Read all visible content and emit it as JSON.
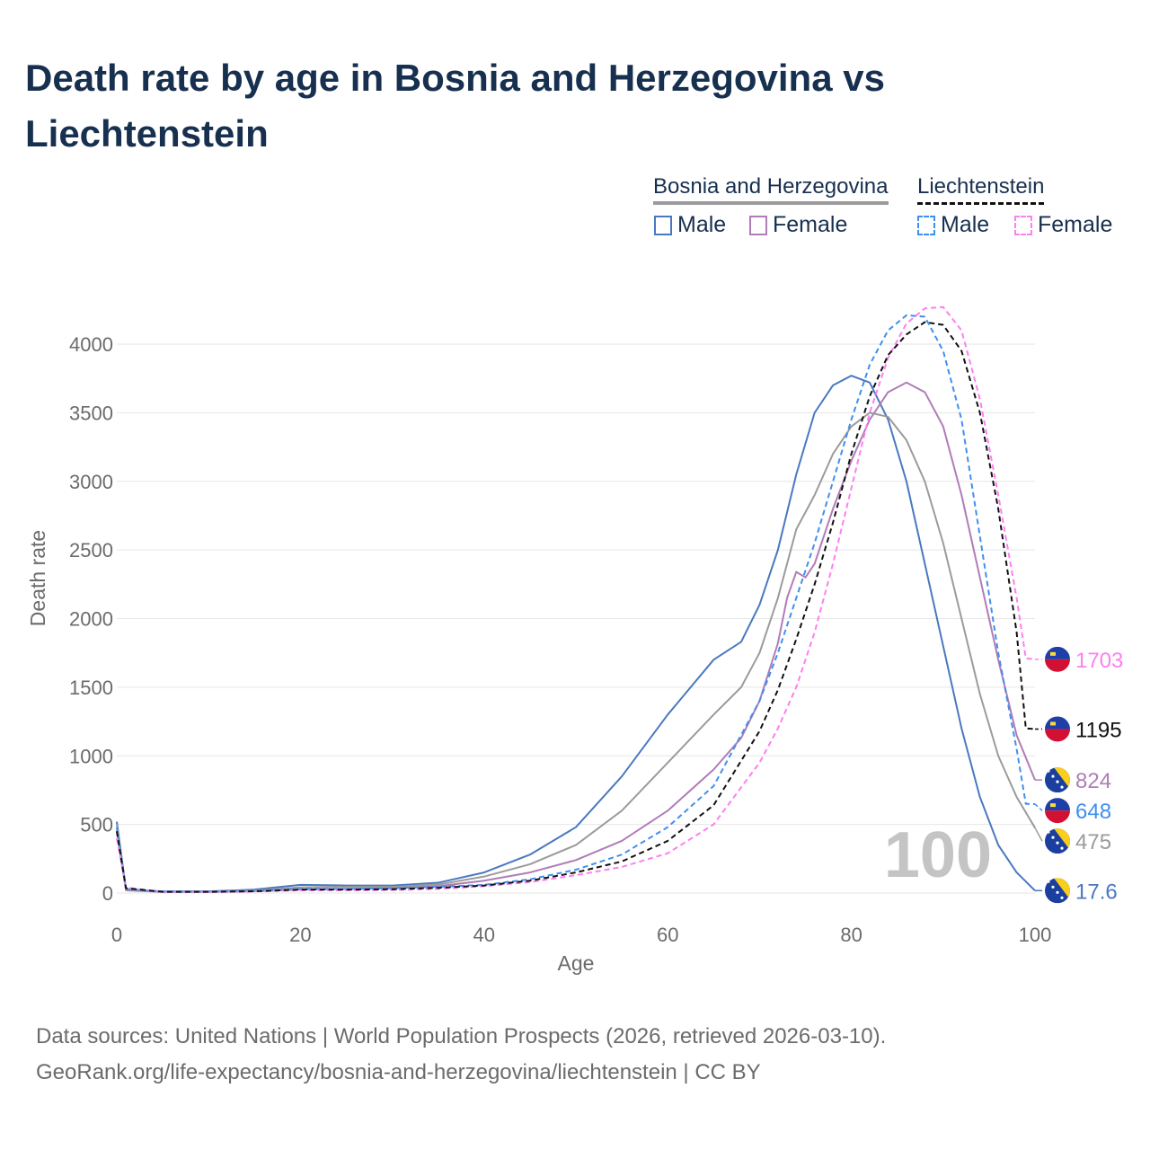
{
  "title": "Death rate by age in Bosnia and Herzegovina vs Liechtenstein",
  "legend": {
    "groups": [
      {
        "name": "Bosnia and Herzegovina",
        "underline_color": "#9b9b9b",
        "items": [
          {
            "label": "Male",
            "color": "#4a78c0",
            "dashed": false
          },
          {
            "label": "Female",
            "color": "#b07cb8",
            "dashed": false
          }
        ]
      },
      {
        "name": "Liechtenstein",
        "underline_color": "#111111",
        "items": [
          {
            "label": "Male",
            "color": "#3f8ff0",
            "dashed": true
          },
          {
            "label": "Female",
            "color": "#ff7ef0",
            "dashed": true
          }
        ]
      }
    ]
  },
  "chart_data": {
    "type": "line",
    "xlabel": "Age",
    "ylabel": "Death rate",
    "xlim": [
      0,
      100
    ],
    "ylim": [
      0,
      4000
    ],
    "xticks": [
      0,
      20,
      40,
      60,
      80,
      100
    ],
    "yticks": [
      0,
      500,
      1000,
      1500,
      2000,
      2500,
      3000,
      3500,
      4000
    ],
    "grid": true,
    "highlight_age": "100",
    "series": [
      {
        "name": "Bosnia and Herzegovina Male",
        "color": "#4a78c0",
        "dashed": false,
        "end_label": "17.6",
        "flag": "bosnia",
        "x": [
          0,
          1,
          5,
          10,
          15,
          20,
          25,
          30,
          35,
          40,
          45,
          50,
          55,
          60,
          65,
          68,
          70,
          72,
          74,
          76,
          78,
          80,
          82,
          84,
          86,
          88,
          90,
          92,
          94,
          96,
          98,
          100
        ],
        "y": [
          520,
          25,
          12,
          12,
          25,
          60,
          55,
          55,
          75,
          150,
          280,
          480,
          850,
          1300,
          1700,
          1830,
          2100,
          2500,
          3050,
          3500,
          3700,
          3770,
          3720,
          3450,
          3000,
          2400,
          1800,
          1200,
          700,
          350,
          150,
          17.6
        ]
      },
      {
        "name": "Bosnia and Herzegovina Female",
        "color": "#b07cb8",
        "dashed": false,
        "end_label": "824",
        "flag": "bosnia",
        "x": [
          0,
          1,
          5,
          10,
          15,
          20,
          25,
          30,
          35,
          40,
          45,
          50,
          55,
          60,
          65,
          68,
          70,
          72,
          73,
          74,
          75,
          76,
          78,
          80,
          82,
          84,
          86,
          88,
          90,
          92,
          94,
          96,
          98,
          100
        ],
        "y": [
          450,
          20,
          8,
          8,
          12,
          25,
          30,
          35,
          50,
          90,
          150,
          240,
          380,
          600,
          900,
          1130,
          1400,
          1820,
          2150,
          2340,
          2300,
          2400,
          2800,
          3150,
          3450,
          3650,
          3720,
          3650,
          3400,
          2900,
          2300,
          1700,
          1150,
          824
        ]
      },
      {
        "name": "Bosnia and Herzegovina Total",
        "color": "#9b9b9b",
        "dashed": false,
        "end_label": "475",
        "flag": "bosnia",
        "x": [
          0,
          1,
          5,
          10,
          15,
          20,
          25,
          30,
          35,
          40,
          45,
          50,
          55,
          60,
          65,
          68,
          70,
          72,
          74,
          76,
          78,
          80,
          82,
          84,
          86,
          88,
          90,
          92,
          94,
          96,
          98,
          100
        ],
        "y": [
          500,
          22,
          10,
          10,
          18,
          42,
          45,
          45,
          62,
          120,
          210,
          350,
          600,
          950,
          1300,
          1500,
          1750,
          2150,
          2650,
          2900,
          3200,
          3400,
          3500,
          3470,
          3300,
          3000,
          2550,
          2000,
          1450,
          1000,
          700,
          475
        ]
      },
      {
        "name": "Liechtenstein Male",
        "color": "#3f8ff0",
        "dashed": true,
        "end_label": "648",
        "flag": "liechtenstein",
        "x": [
          0,
          1,
          5,
          10,
          15,
          20,
          25,
          30,
          35,
          40,
          45,
          50,
          55,
          60,
          65,
          70,
          72,
          74,
          76,
          78,
          80,
          82,
          84,
          86,
          88,
          90,
          92,
          94,
          96,
          98,
          99,
          100
        ],
        "y": [
          480,
          30,
          10,
          10,
          15,
          30,
          30,
          35,
          45,
          60,
          100,
          170,
          280,
          480,
          780,
          1400,
          1750,
          2150,
          2550,
          3000,
          3450,
          3850,
          4100,
          4210,
          4200,
          3950,
          3450,
          2600,
          1750,
          1050,
          650,
          648
        ]
      },
      {
        "name": "Liechtenstein Female",
        "color": "#ff7ef0",
        "dashed": true,
        "end_label": "1703",
        "flag": "liechtenstein",
        "x": [
          0,
          1,
          5,
          10,
          15,
          20,
          25,
          30,
          35,
          40,
          45,
          50,
          55,
          60,
          65,
          70,
          72,
          74,
          76,
          78,
          80,
          82,
          84,
          86,
          88,
          90,
          92,
          94,
          96,
          98,
          99,
          100
        ],
        "y": [
          400,
          40,
          8,
          8,
          12,
          20,
          20,
          22,
          30,
          50,
          80,
          130,
          190,
          290,
          500,
          950,
          1200,
          1500,
          1900,
          2400,
          2950,
          3500,
          3900,
          4150,
          4260,
          4270,
          4100,
          3600,
          2900,
          2150,
          1710,
          1703
        ]
      },
      {
        "name": "Liechtenstein Total",
        "color": "#111111",
        "dashed": true,
        "end_label": "1195",
        "flag": "liechtenstein",
        "x": [
          0,
          1,
          5,
          10,
          15,
          20,
          25,
          30,
          35,
          40,
          45,
          50,
          55,
          60,
          65,
          70,
          72,
          74,
          76,
          78,
          80,
          82,
          84,
          86,
          88,
          90,
          92,
          94,
          96,
          98,
          99,
          100
        ],
        "y": [
          450,
          35,
          9,
          9,
          13,
          25,
          25,
          28,
          38,
          55,
          90,
          150,
          230,
          380,
          640,
          1180,
          1480,
          1850,
          2250,
          2700,
          3200,
          3620,
          3920,
          4070,
          4160,
          4140,
          3950,
          3500,
          2800,
          1900,
          1200,
          1195
        ]
      }
    ]
  },
  "source": {
    "line1": "Data sources: United Nations | World Population Prospects (2026, retrieved 2026-03-10).",
    "line2": "GeoRank.org/life-expectancy/bosnia-and-herzegovina/liechtenstein | CC BY"
  }
}
